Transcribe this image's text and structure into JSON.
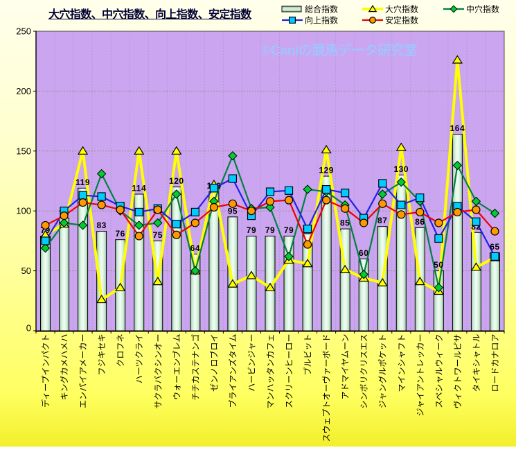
{
  "title": "大穴指数、中穴指数、向上指数、安定指数",
  "watermark": "©Caniの競馬データ研究室",
  "y_axis": {
    "ticks": [
      0,
      50,
      100,
      150,
      200,
      250
    ]
  },
  "legend": [
    {
      "label": "総合指数",
      "marker": "bar"
    },
    {
      "label": "大穴指数",
      "marker": "triangle"
    },
    {
      "label": "中穴指数",
      "marker": "diamond"
    },
    {
      "label": "向上指数",
      "marker": "square"
    },
    {
      "label": "安定指数",
      "marker": "circle"
    }
  ],
  "chart_data": {
    "type": "bar+line",
    "title": "大穴指数、中穴指数、向上指数、安定指数",
    "ylim": [
      0,
      250
    ],
    "yticks": [
      0,
      50,
      100,
      150,
      200,
      250
    ],
    "grid": true,
    "legend_position": "top",
    "categories": [
      "ディープインパクト",
      "キングカメハメハ",
      "エンパイアメーカー",
      "フジキセキ",
      "クロフネ",
      "ハーツクライ",
      "サクラバクシンオー",
      "ウォーエンブレム",
      "チチカステナンゴ",
      "ゼンノロブロイ",
      "ブライアンズタイム",
      "ハービンジャー",
      "マンハッタンカフェ",
      "スクリーンヒーロー",
      "ブルビット",
      "スウェプトオーヴァーボード",
      "アドマイヤムーン",
      "シンボリクリスエス",
      "ジャングルポケット",
      "マインシャフト",
      "ジャイアントレッカー",
      "スペシャルウィーク",
      "ヴィクトワールピサ",
      "タイキシャトル",
      "ロードカナロア"
    ],
    "series": [
      {
        "name": "総合指数",
        "type": "bar",
        "values": [
          79,
          94,
          119,
          83,
          76,
          114,
          75,
          120,
          64,
          116,
          95,
          79,
          79,
          79,
          81,
          129,
          85,
          60,
          87,
          130,
          86,
          50,
          164,
          82,
          65
        ]
      },
      {
        "name": "大穴指数",
        "type": "line",
        "marker": "triangle",
        "values": [
          80,
          89,
          150,
          26,
          36,
          150,
          41,
          150,
          50,
          122,
          39,
          46,
          36,
          59,
          56,
          151,
          51,
          44,
          40,
          153,
          41,
          33,
          226,
          53,
          61
        ]
      },
      {
        "name": "中穴指数",
        "type": "line",
        "marker": "diamond",
        "values": [
          69,
          90,
          88,
          131,
          100,
          88,
          90,
          114,
          50,
          108,
          146,
          102,
          103,
          62,
          118,
          116,
          105,
          47,
          114,
          124,
          108,
          36,
          138,
          108,
          98
        ]
      },
      {
        "name": "向上指数",
        "type": "line",
        "marker": "square",
        "values": [
          75,
          100,
          113,
          112,
          104,
          99,
          102,
          89,
          99,
          119,
          127,
          96,
          116,
          117,
          85,
          118,
          115,
          94,
          123,
          105,
          111,
          77,
          104,
          91,
          62
        ]
      },
      {
        "name": "安定指数",
        "type": "line",
        "marker": "circle",
        "values": [
          88,
          96,
          107,
          105,
          101,
          79,
          101,
          80,
          90,
          103,
          106,
          100,
          108,
          109,
          72,
          109,
          102,
          90,
          106,
          97,
          99,
          90,
          99,
          101,
          83
        ]
      }
    ]
  },
  "colors": {
    "plot_bg": "#CBA5EF",
    "bar_light": "#F2FDF4",
    "bar_mid": "#D5F0DC",
    "bar_dark": "#98C2A2",
    "ooana_line": "#FFFF00",
    "ooana_fill": "#FFFF00",
    "chuana_line": "#008040",
    "chuana_fill": "#00CC33",
    "kojo_line": "#2121E8",
    "kojo_fill": "#00CCFF",
    "antei_line": "#EE0000",
    "antei_fill": "#FF9900",
    "grid_h": "#8F8F8F",
    "grid_v": "#AC9DCE",
    "axis": "#000000",
    "border": "#505050",
    "title_color": "#000033",
    "watermark_color": "#A3C2FF",
    "bg_top": "#FFFFEC",
    "bg_bottom": "#F2EF2A"
  }
}
